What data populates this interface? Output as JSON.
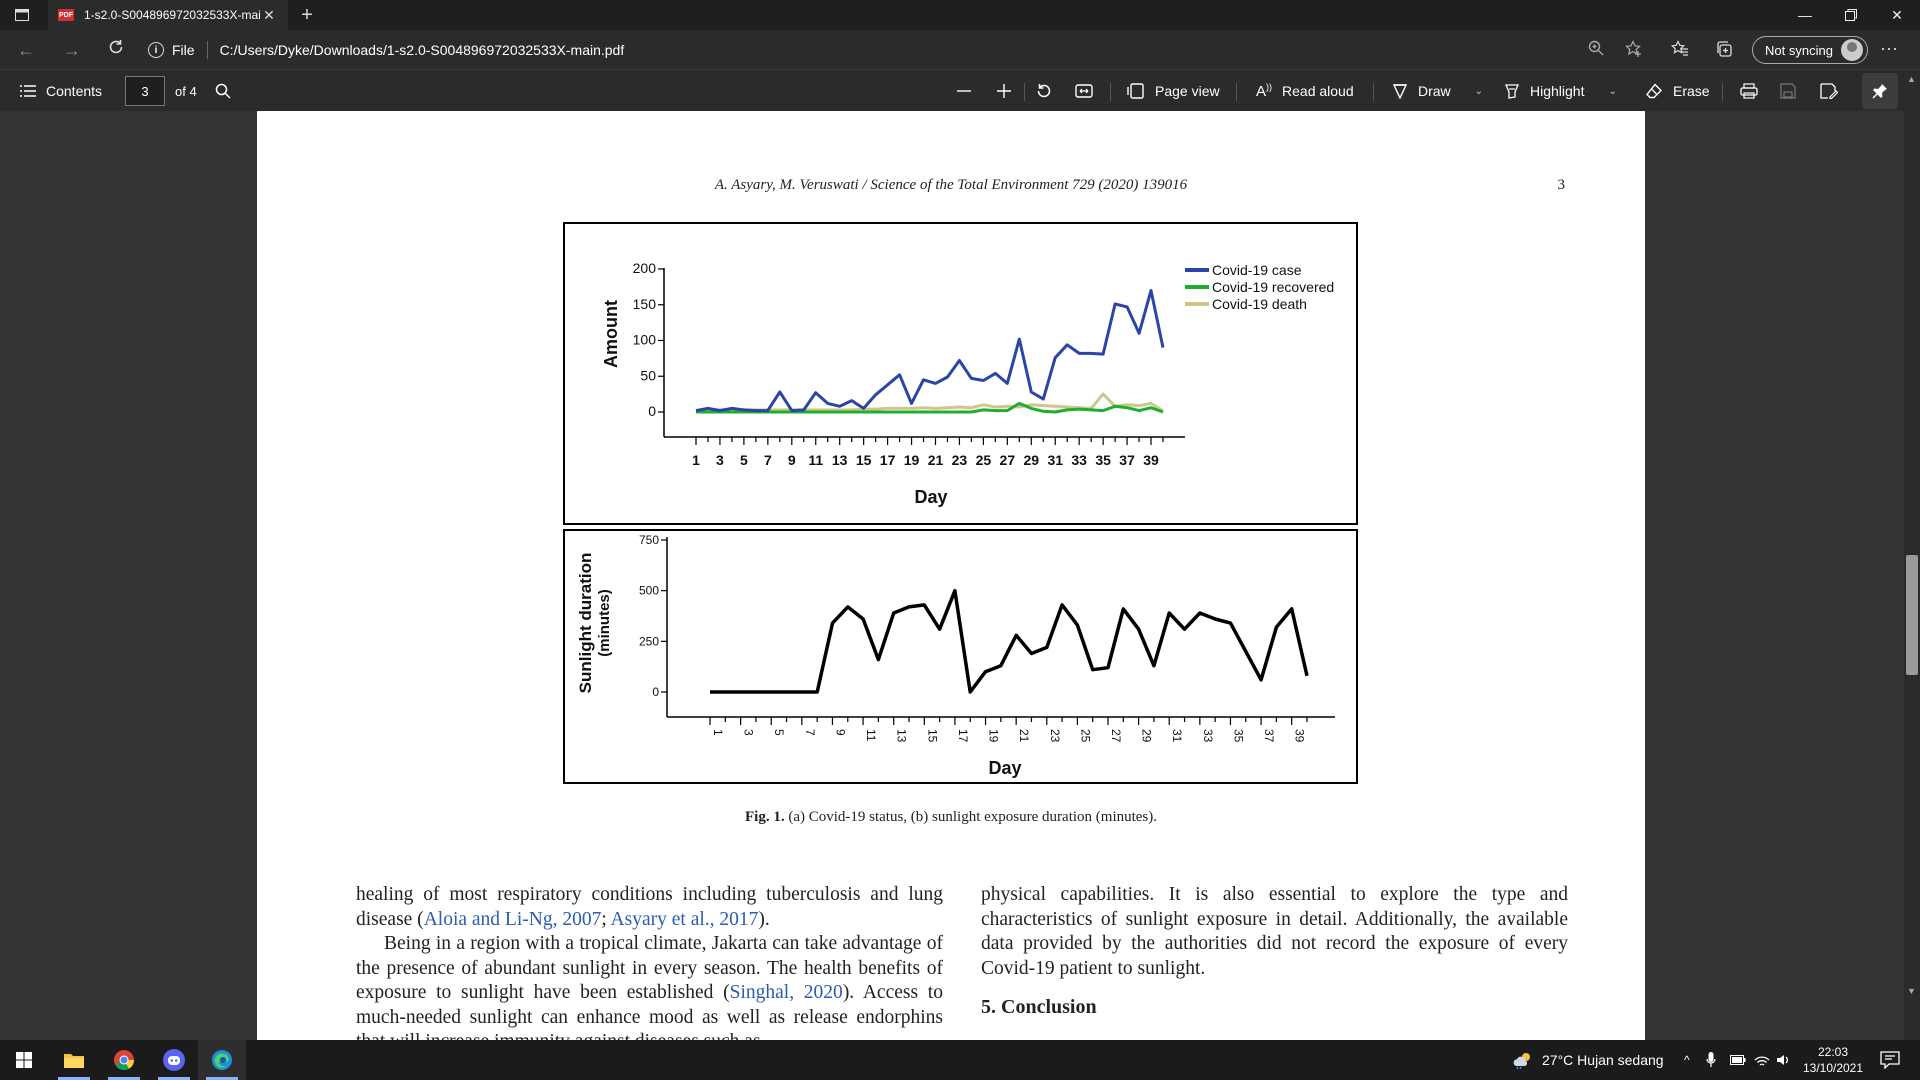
{
  "browser": {
    "tab_title": "1-s2.0-S004896972032533X-mai",
    "tab_icon": "PDF",
    "address_scheme": "File",
    "address_url": "C:/Users/Dyke/Downloads/1-s2.0-S004896972032533X-main.pdf",
    "sync_label": "Not syncing"
  },
  "pdf_toolbar": {
    "contents_label": "Contents",
    "page_current": "3",
    "page_total": "of 4",
    "page_view_label": "Page view",
    "read_aloud_label": "Read aloud",
    "draw_label": "Draw",
    "highlight_label": "Highlight",
    "erase_label": "Erase"
  },
  "document": {
    "running_head": "A. Asyary, M. Veruswati / Science of the Total Environment 729 (2020) 139016",
    "page_number": "3",
    "caption_label": "Fig. 1.",
    "caption_text": " (a) Covid-19 status, (b) sunlight exposure duration (minutes).",
    "col_left": {
      "p1_a": "healing of most respiratory conditions including tuberculosis and lung disease (",
      "p1_cite1": "Aloia and Li-Ng, 2007",
      "p1_b": "; ",
      "p1_cite2": "Asyary et al., 2017",
      "p1_c": ").",
      "p2_a": "Being in a region with a tropical climate, Jakarta can take advantage of the presence of abundant sunlight in every season. The health benefits of exposure to sunlight have been established (",
      "p2_cite": "Singhal, 2020",
      "p2_b": "). Access to much-needed sunlight can enhance mood as well as release endorphins that will increase immunity against diseases such as"
    },
    "col_right": {
      "p1": "physical capabilities. It is also essential to explore the type and characteristics of sunlight exposure in detail. Additionally, the available data provided by the authorities did not record the exposure of every Covid-19 patient to sunlight.",
      "section": "5. Conclusion"
    }
  },
  "chart_data": [
    {
      "type": "line",
      "ylabel": "Amount",
      "xlabel": "Day",
      "ylim": [
        0,
        200
      ],
      "yticks": [
        0,
        50,
        100,
        150,
        200
      ],
      "xtick_labels": [
        "1",
        "3",
        "5",
        "7",
        "9",
        "11",
        "13",
        "15",
        "17",
        "19",
        "21",
        "23",
        "25",
        "27",
        "29",
        "31",
        "33",
        "35",
        "37",
        "39"
      ],
      "x": [
        1,
        2,
        3,
        4,
        5,
        6,
        7,
        8,
        9,
        10,
        11,
        12,
        13,
        14,
        15,
        16,
        17,
        18,
        19,
        20,
        21,
        22,
        23,
        24,
        25,
        26,
        27,
        28,
        29,
        30,
        31,
        32,
        33,
        34,
        35,
        36,
        37,
        38,
        39,
        40
      ],
      "legend_position": "top-right",
      "series": [
        {
          "name": "Covid-19 case",
          "color": "#2b44a6",
          "values": [
            2,
            5,
            2,
            5,
            3,
            2,
            2,
            28,
            2,
            3,
            27,
            12,
            8,
            16,
            5,
            24,
            38,
            52,
            12,
            45,
            40,
            49,
            72,
            47,
            44,
            54,
            40,
            102,
            28,
            18,
            76,
            94,
            82,
            82,
            81,
            151,
            147,
            110,
            170,
            90
          ]
        },
        {
          "name": "Covid-19 recovered",
          "color": "#1fae2d",
          "values": [
            0,
            0,
            0,
            0,
            0,
            0,
            0,
            0,
            0,
            0,
            0,
            0,
            0,
            0,
            0,
            0,
            0,
            0,
            0,
            0,
            0,
            0,
            0,
            0,
            3,
            2,
            2,
            12,
            5,
            1,
            0,
            3,
            4,
            3,
            2,
            8,
            6,
            2,
            6,
            0
          ]
        },
        {
          "name": "Covid-19 death",
          "color": "#cfc78a",
          "values": [
            2,
            3,
            3,
            3,
            3,
            3,
            3,
            3,
            3,
            3,
            3,
            3,
            3,
            3,
            4,
            4,
            5,
            5,
            5,
            6,
            5,
            6,
            7,
            6,
            10,
            7,
            8,
            7,
            10,
            9,
            8,
            7,
            6,
            5,
            25,
            8,
            10,
            9,
            12,
            2
          ]
        }
      ]
    },
    {
      "type": "line",
      "ylabel": "Sunlight duration (minutes)",
      "xlabel": "Day",
      "ylim": [
        0,
        750
      ],
      "yticks": [
        0,
        250,
        500,
        750
      ],
      "xtick_labels": [
        "1",
        "3",
        "5",
        "7",
        "9",
        "11",
        "13",
        "15",
        "17",
        "19",
        "21",
        "23",
        "25",
        "27",
        "29",
        "31",
        "33",
        "35",
        "37",
        "39"
      ],
      "x": [
        1,
        2,
        3,
        4,
        5,
        6,
        7,
        8,
        9,
        10,
        11,
        12,
        13,
        14,
        15,
        16,
        17,
        18,
        19,
        20,
        21,
        22,
        23,
        24,
        25,
        26,
        27,
        28,
        29,
        30,
        31,
        32,
        33,
        34,
        35,
        36,
        37,
        38,
        39,
        40
      ],
      "series": [
        {
          "name": "",
          "color": "#000000",
          "values": [
            0,
            0,
            0,
            0,
            0,
            0,
            0,
            0,
            340,
            420,
            360,
            160,
            390,
            420,
            430,
            310,
            500,
            0,
            100,
            130,
            280,
            190,
            220,
            430,
            330,
            110,
            120,
            410,
            310,
            130,
            390,
            310,
            390,
            360,
            340,
            200,
            60,
            320,
            410,
            80
          ]
        }
      ]
    }
  ]
}
